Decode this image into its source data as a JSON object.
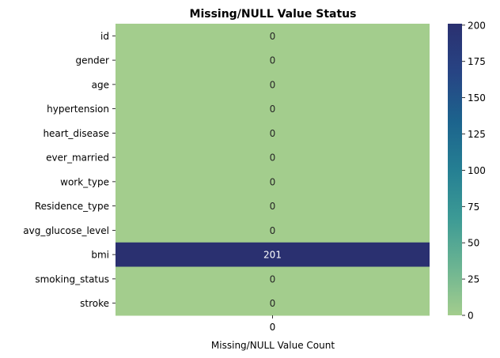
{
  "chart_data": {
    "type": "heatmap",
    "title": "Missing/NULL Value Status",
    "xlabel": "Missing/NULL Value Count",
    "ylabel": "",
    "x_categories": [
      "0"
    ],
    "y_categories": [
      "id",
      "gender",
      "age",
      "hypertension",
      "heart_disease",
      "ever_married",
      "work_type",
      "Residence_type",
      "avg_glucose_level",
      "bmi",
      "smoking_status",
      "stroke"
    ],
    "values": [
      0,
      0,
      0,
      0,
      0,
      0,
      0,
      0,
      0,
      201,
      0,
      0
    ],
    "annotations": [
      "0",
      "0",
      "0",
      "0",
      "0",
      "0",
      "0",
      "0",
      "0",
      "201",
      "0",
      "0"
    ],
    "colorbar": {
      "range": [
        0,
        201
      ],
      "ticks": [
        0,
        25,
        50,
        75,
        100,
        125,
        150,
        175,
        200
      ],
      "tick_labels": [
        "0",
        "25",
        "50",
        "75",
        "100",
        "125",
        "150",
        "175",
        "200"
      ],
      "colormap": "crest",
      "colors": [
        "#a3cd8d",
        "#6bb492",
        "#3c9a95",
        "#257f93",
        "#1c638d",
        "#274484",
        "#2a3070"
      ]
    },
    "grid": false,
    "legend": "colorbar-right"
  }
}
